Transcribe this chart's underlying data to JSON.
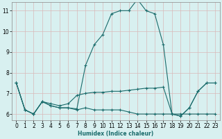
{
  "xlabel": "Humidex (Indice chaleur)",
  "x": [
    0,
    1,
    2,
    3,
    4,
    5,
    6,
    7,
    8,
    9,
    10,
    11,
    12,
    13,
    14,
    15,
    16,
    17,
    18,
    19,
    20,
    21,
    22,
    23
  ],
  "line_peak_y": [
    7.5,
    6.2,
    6.0,
    6.6,
    6.4,
    6.3,
    6.3,
    6.25,
    8.35,
    9.35,
    9.85,
    10.85,
    11.0,
    11.0,
    11.55,
    11.0,
    10.85,
    9.35,
    6.0,
    5.9,
    6.3,
    7.1,
    7.5,
    7.5
  ],
  "line_flat_y": [
    7.5,
    6.2,
    6.0,
    6.6,
    6.4,
    6.3,
    6.3,
    6.2,
    6.3,
    6.2,
    6.2,
    6.2,
    6.2,
    6.1,
    6.0,
    6.0,
    6.0,
    6.0,
    6.0,
    6.0,
    6.0,
    6.0,
    6.0,
    6.0
  ],
  "line_mid_y": [
    7.5,
    6.2,
    6.0,
    6.6,
    6.5,
    6.4,
    6.5,
    6.9,
    7.0,
    7.05,
    7.05,
    7.1,
    7.1,
    7.15,
    7.2,
    7.25,
    7.25,
    7.3,
    6.0,
    5.9,
    6.3,
    7.1,
    7.5,
    7.5
  ],
  "line_color": "#1a6b6b",
  "bg_color": "#d8f0f0",
  "grid_color_v": "#d8b8b8",
  "grid_color_h": "#d8b8b8",
  "ylim": [
    5.7,
    11.4
  ],
  "xlim": [
    -0.5,
    23.5
  ],
  "yticks": [
    6,
    7,
    8,
    9,
    10,
    11
  ],
  "xticks": [
    0,
    1,
    2,
    3,
    4,
    5,
    6,
    7,
    8,
    9,
    10,
    11,
    12,
    13,
    14,
    15,
    16,
    17,
    18,
    19,
    20,
    21,
    22,
    23
  ],
  "xlabel_fontsize": 5.5,
  "tick_fontsize": 5.5,
  "marker_size": 3,
  "linewidth": 0.8
}
